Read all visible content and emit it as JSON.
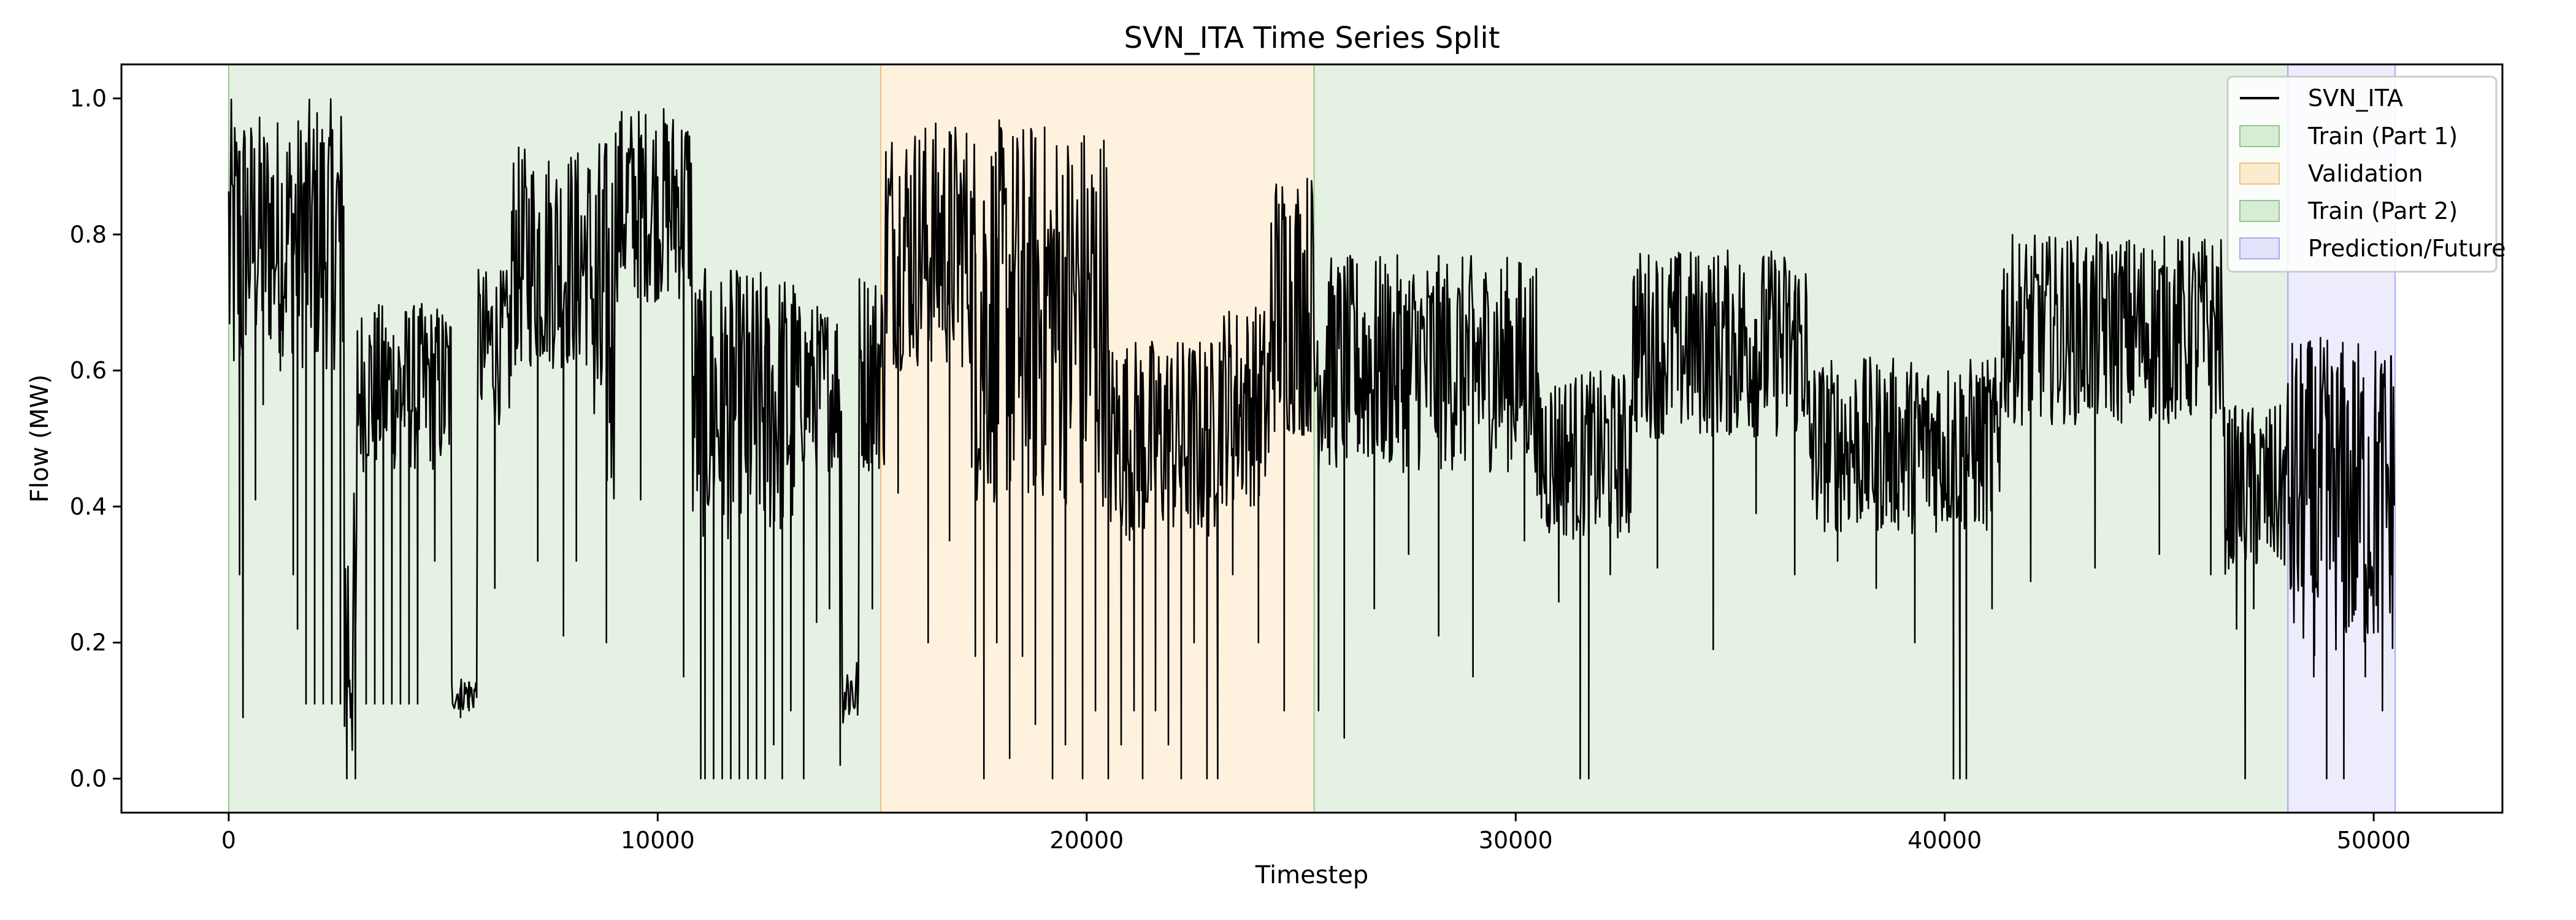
{
  "chart_data": {
    "type": "line",
    "title": "SVN_ITA Time Series Split",
    "xlabel": "Timestep",
    "ylabel": "Flow (MW)",
    "xlim": [
      -2500,
      53000
    ],
    "ylim": [
      -0.05,
      1.05
    ],
    "xticks": [
      0,
      10000,
      20000,
      30000,
      40000,
      50000
    ],
    "yticks": [
      0.0,
      0.2,
      0.4,
      0.6,
      0.8,
      1.0
    ],
    "xtick_labels": [
      "0",
      "10000",
      "20000",
      "30000",
      "40000",
      "50000"
    ],
    "ytick_labels": [
      "0.0",
      "0.2",
      "0.4",
      "0.6",
      "0.8",
      "1.0"
    ],
    "grid": false,
    "legend_position": "top-right",
    "series": [
      {
        "name": "SVN_ITA",
        "color": "#000000",
        "segments": [
          {
            "x0": 0,
            "x1": 400,
            "lo": 0.55,
            "hi": 1.0
          },
          {
            "x0": 400,
            "x1": 1700,
            "lo": 0.62,
            "hi": 0.98
          },
          {
            "x0": 1700,
            "x1": 2700,
            "lo": 0.6,
            "hi": 1.0
          },
          {
            "x0": 2700,
            "x1": 3000,
            "lo": 0.0,
            "hi": 0.43
          },
          {
            "x0": 3000,
            "x1": 5200,
            "lo": 0.45,
            "hi": 0.7
          },
          {
            "x0": 5200,
            "x1": 5800,
            "lo": 0.1,
            "hi": 0.15
          },
          {
            "x0": 5800,
            "x1": 6600,
            "lo": 0.52,
            "hi": 0.75
          },
          {
            "x0": 6600,
            "x1": 8500,
            "lo": 0.6,
            "hi": 0.93
          },
          {
            "x0": 8500,
            "x1": 9000,
            "lo": 0.38,
            "hi": 0.95
          },
          {
            "x0": 9000,
            "x1": 10800,
            "lo": 0.7,
            "hi": 0.99
          },
          {
            "x0": 10800,
            "x1": 13300,
            "lo": 0.35,
            "hi": 0.75
          },
          {
            "x0": 13300,
            "x1": 14300,
            "lo": 0.45,
            "hi": 0.7
          },
          {
            "x0": 14300,
            "x1": 14700,
            "lo": 0.08,
            "hi": 0.18
          },
          {
            "x0": 14700,
            "x1": 15300,
            "lo": 0.45,
            "hi": 0.75
          },
          {
            "x0": 15300,
            "x1": 17300,
            "lo": 0.6,
            "hi": 0.97
          },
          {
            "x0": 17300,
            "x1": 20500,
            "lo": 0.4,
            "hi": 0.97
          },
          {
            "x0": 20500,
            "x1": 23000,
            "lo": 0.35,
            "hi": 0.65
          },
          {
            "x0": 23000,
            "x1": 24300,
            "lo": 0.4,
            "hi": 0.7
          },
          {
            "x0": 24300,
            "x1": 25300,
            "lo": 0.5,
            "hi": 0.9
          },
          {
            "x0": 25300,
            "x1": 30500,
            "lo": 0.45,
            "hi": 0.77
          },
          {
            "x0": 30500,
            "x1": 32700,
            "lo": 0.35,
            "hi": 0.6
          },
          {
            "x0": 32700,
            "x1": 36800,
            "lo": 0.5,
            "hi": 0.78
          },
          {
            "x0": 36800,
            "x1": 41300,
            "lo": 0.36,
            "hi": 0.62
          },
          {
            "x0": 41300,
            "x1": 46500,
            "lo": 0.52,
            "hi": 0.8
          },
          {
            "x0": 46500,
            "x1": 48000,
            "lo": 0.3,
            "hi": 0.55
          },
          {
            "x0": 48000,
            "x1": 50500,
            "lo": 0.18,
            "hi": 0.65
          }
        ],
        "dips": [
          {
            "x": 250,
            "y": 0.3
          },
          {
            "x": 330,
            "y": 0.09
          },
          {
            "x": 620,
            "y": 0.41
          },
          {
            "x": 800,
            "y": 0.55
          },
          {
            "x": 1200,
            "y": 0.6
          },
          {
            "x": 1500,
            "y": 0.3
          },
          {
            "x": 1600,
            "y": 0.22
          },
          {
            "x": 1800,
            "y": 0.11
          },
          {
            "x": 2000,
            "y": 0.11
          },
          {
            "x": 2200,
            "y": 0.11
          },
          {
            "x": 2400,
            "y": 0.11
          },
          {
            "x": 2600,
            "y": 0.11
          },
          {
            "x": 2750,
            "y": 0.0
          },
          {
            "x": 2950,
            "y": 0.0
          },
          {
            "x": 3200,
            "y": 0.11
          },
          {
            "x": 3400,
            "y": 0.11
          },
          {
            "x": 3600,
            "y": 0.11
          },
          {
            "x": 3800,
            "y": 0.11
          },
          {
            "x": 4000,
            "y": 0.11
          },
          {
            "x": 4200,
            "y": 0.11
          },
          {
            "x": 4400,
            "y": 0.11
          },
          {
            "x": 4800,
            "y": 0.32
          },
          {
            "x": 5400,
            "y": 0.09
          },
          {
            "x": 5600,
            "y": 0.1
          },
          {
            "x": 5700,
            "y": 0.11
          },
          {
            "x": 6200,
            "y": 0.28
          },
          {
            "x": 7200,
            "y": 0.32
          },
          {
            "x": 7800,
            "y": 0.21
          },
          {
            "x": 8100,
            "y": 0.32
          },
          {
            "x": 8800,
            "y": 0.2
          },
          {
            "x": 9600,
            "y": 0.41
          },
          {
            "x": 10600,
            "y": 0.15
          },
          {
            "x": 11000,
            "y": 0.0
          },
          {
            "x": 11100,
            "y": 0.0
          },
          {
            "x": 11300,
            "y": 0.0
          },
          {
            "x": 11500,
            "y": 0.0
          },
          {
            "x": 11700,
            "y": 0.0
          },
          {
            "x": 11900,
            "y": 0.0
          },
          {
            "x": 12100,
            "y": 0.0
          },
          {
            "x": 12300,
            "y": 0.0
          },
          {
            "x": 12500,
            "y": 0.0
          },
          {
            "x": 12700,
            "y": 0.05
          },
          {
            "x": 12900,
            "y": 0.0
          },
          {
            "x": 13100,
            "y": 0.1
          },
          {
            "x": 13400,
            "y": 0.0
          },
          {
            "x": 13700,
            "y": 0.23
          },
          {
            "x": 14000,
            "y": 0.25
          },
          {
            "x": 14250,
            "y": 0.02
          },
          {
            "x": 15000,
            "y": 0.25
          },
          {
            "x": 15600,
            "y": 0.42
          },
          {
            "x": 16300,
            "y": 0.2
          },
          {
            "x": 16800,
            "y": 0.35
          },
          {
            "x": 17400,
            "y": 0.18
          },
          {
            "x": 17600,
            "y": 0.0
          },
          {
            "x": 17900,
            "y": 0.2
          },
          {
            "x": 18200,
            "y": 0.03
          },
          {
            "x": 18500,
            "y": 0.18
          },
          {
            "x": 18800,
            "y": 0.08
          },
          {
            "x": 19200,
            "y": 0.0
          },
          {
            "x": 19500,
            "y": 0.05
          },
          {
            "x": 19900,
            "y": 0.0
          },
          {
            "x": 20200,
            "y": 0.1
          },
          {
            "x": 20500,
            "y": 0.0
          },
          {
            "x": 20800,
            "y": 0.05
          },
          {
            "x": 21100,
            "y": 0.1
          },
          {
            "x": 21300,
            "y": 0.0
          },
          {
            "x": 21600,
            "y": 0.1
          },
          {
            "x": 21900,
            "y": 0.05
          },
          {
            "x": 22200,
            "y": 0.0
          },
          {
            "x": 22500,
            "y": 0.2
          },
          {
            "x": 22800,
            "y": 0.0
          },
          {
            "x": 23050,
            "y": 0.0
          },
          {
            "x": 23400,
            "y": 0.3
          },
          {
            "x": 24000,
            "y": 0.2
          },
          {
            "x": 24600,
            "y": 0.1
          },
          {
            "x": 25400,
            "y": 0.1
          },
          {
            "x": 26000,
            "y": 0.06
          },
          {
            "x": 26700,
            "y": 0.25
          },
          {
            "x": 27500,
            "y": 0.33
          },
          {
            "x": 28200,
            "y": 0.21
          },
          {
            "x": 29000,
            "y": 0.15
          },
          {
            "x": 30200,
            "y": 0.35
          },
          {
            "x": 31000,
            "y": 0.26
          },
          {
            "x": 31500,
            "y": 0.0
          },
          {
            "x": 31700,
            "y": 0.0
          },
          {
            "x": 32200,
            "y": 0.3
          },
          {
            "x": 33300,
            "y": 0.31
          },
          {
            "x": 34600,
            "y": 0.19
          },
          {
            "x": 35600,
            "y": 0.39
          },
          {
            "x": 36500,
            "y": 0.3
          },
          {
            "x": 37500,
            "y": 0.32
          },
          {
            "x": 38400,
            "y": 0.28
          },
          {
            "x": 39300,
            "y": 0.2
          },
          {
            "x": 40200,
            "y": 0.0
          },
          {
            "x": 40350,
            "y": 0.0
          },
          {
            "x": 40500,
            "y": 0.0
          },
          {
            "x": 41100,
            "y": 0.25
          },
          {
            "x": 42000,
            "y": 0.29
          },
          {
            "x": 43500,
            "y": 0.31
          },
          {
            "x": 45000,
            "y": 0.33
          },
          {
            "x": 46200,
            "y": 0.3
          },
          {
            "x": 46800,
            "y": 0.22
          },
          {
            "x": 47000,
            "y": 0.0
          },
          {
            "x": 47200,
            "y": 0.25
          },
          {
            "x": 48600,
            "y": 0.15
          },
          {
            "x": 48900,
            "y": 0.0
          },
          {
            "x": 49300,
            "y": 0.0
          },
          {
            "x": 49800,
            "y": 0.15
          },
          {
            "x": 50200,
            "y": 0.1
          },
          {
            "x": 50400,
            "y": 0.3
          }
        ]
      }
    ],
    "regions": [
      {
        "name": "Train (Part 1)",
        "x0": 0,
        "x1": 15200,
        "color": "#cfe6cc",
        "edge": "#8fc98a"
      },
      {
        "name": "Validation",
        "x0": 15200,
        "x1": 25300,
        "color": "#fde7c4",
        "edge": "#f0c27a"
      },
      {
        "name": "Train (Part 2)",
        "x0": 25300,
        "x1": 48000,
        "color": "#cfe6cc",
        "edge": "#8fc98a"
      },
      {
        "name": "Prediction/Future",
        "x0": 48000,
        "x1": 50500,
        "color": "#dcdcfa",
        "edge": "#a9a9ef"
      }
    ]
  }
}
